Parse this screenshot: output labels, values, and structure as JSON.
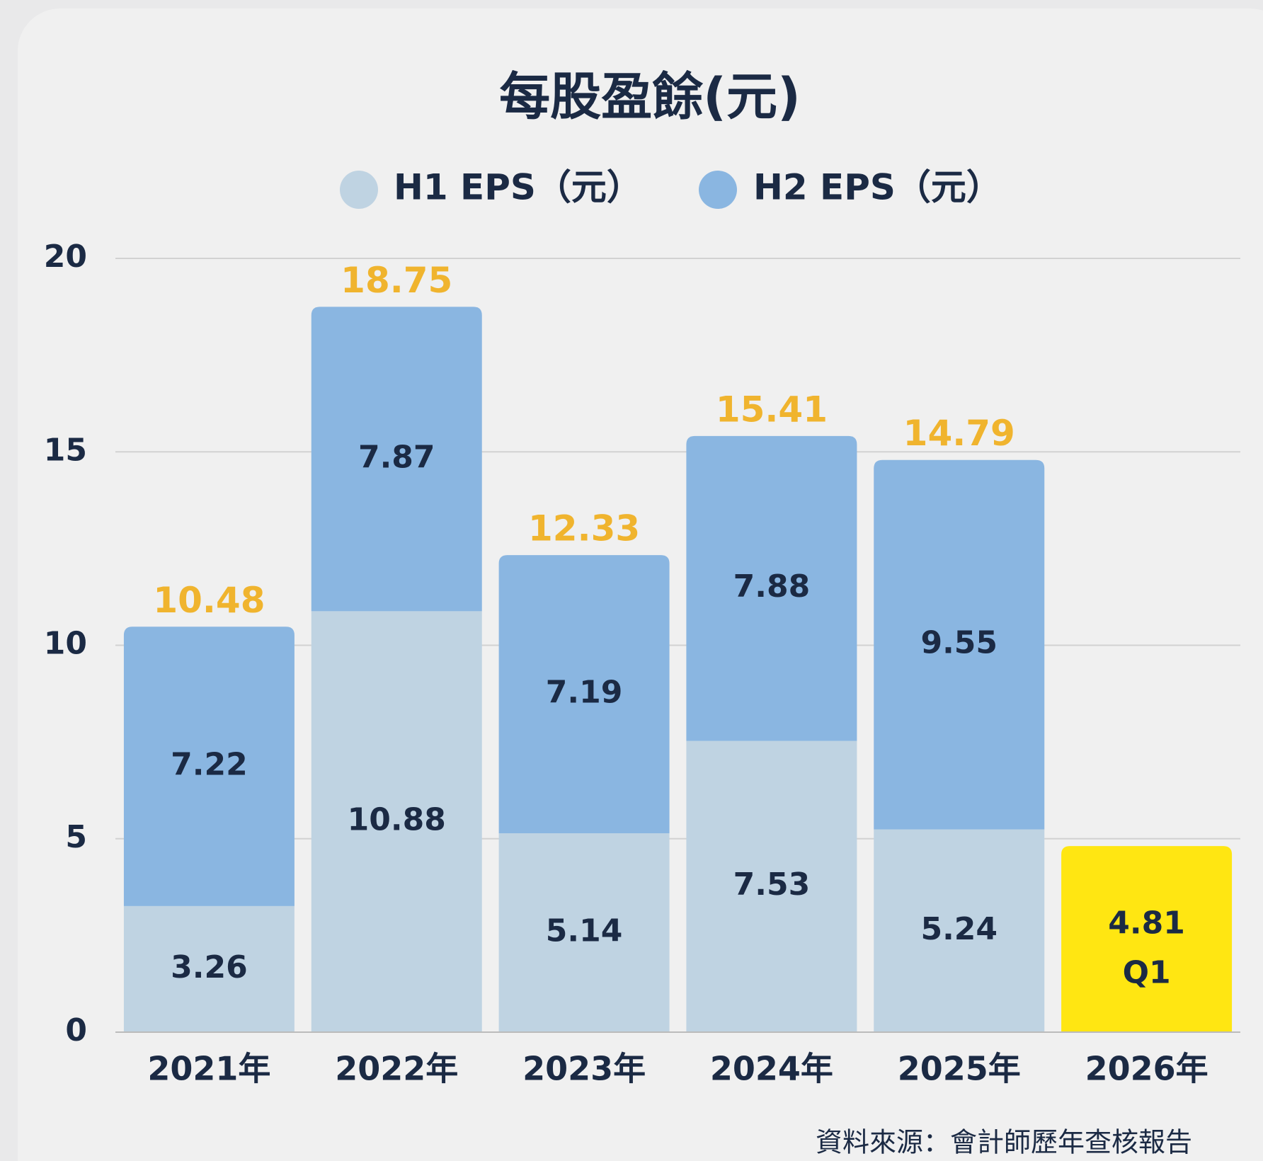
{
  "chart_data": {
    "type": "stacked-bar",
    "title": "每股盈餘(元)",
    "categories": [
      "2021年",
      "2022年",
      "2023年",
      "2024年",
      "2025年",
      "2026年"
    ],
    "series": [
      {
        "name": "H1 EPS（元）",
        "color": "#bfd3e2",
        "values": [
          3.26,
          10.88,
          5.14,
          7.53,
          5.24,
          4.81
        ],
        "colors": [
          "#bfd3e2",
          "#bfd3e2",
          "#bfd3e2",
          "#bfd3e2",
          "#bfd3e2",
          "#ffe612"
        ]
      },
      {
        "name": "H2 EPS（元）",
        "color": "#8ab6e1",
        "values": [
          7.22,
          7.87,
          7.19,
          7.88,
          9.55,
          null
        ]
      }
    ],
    "totals": [
      10.48,
      18.75,
      12.33,
      15.41,
      14.79,
      null
    ],
    "annotations": [
      "Q1"
    ],
    "ylim": [
      0,
      20
    ],
    "yticks": [
      0,
      5,
      10,
      15,
      20
    ],
    "grid": true,
    "source": "資料來源：會計師歷年查核報告"
  }
}
